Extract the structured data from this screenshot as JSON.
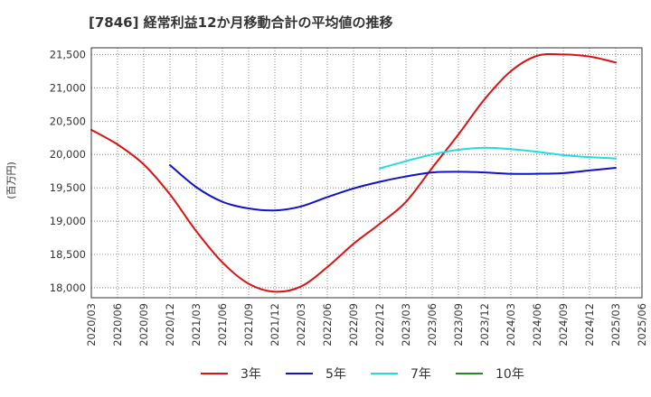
{
  "chart_data": {
    "type": "line",
    "title": "[7846]  経常利益12か月移動合計の平均値の推移",
    "ylabel": "(百万円)",
    "xlabel": "",
    "ylim": [
      17850,
      21600
    ],
    "x_ticks": [
      "2020/03",
      "2020/06",
      "2020/09",
      "2020/12",
      "2021/03",
      "2021/06",
      "2021/09",
      "2021/12",
      "2022/03",
      "2022/06",
      "2022/09",
      "2022/12",
      "2023/03",
      "2023/06",
      "2023/09",
      "2023/12",
      "2024/03",
      "2024/06",
      "2024/09",
      "2024/12",
      "2025/03",
      "2025/06"
    ],
    "y_ticks": [
      18000,
      18500,
      19000,
      19500,
      20000,
      20500,
      21000,
      21500
    ],
    "y_tick_labels": [
      "18,000",
      "18,500",
      "19,000",
      "19,500",
      "20,000",
      "20,500",
      "21,000",
      "21,500"
    ],
    "grid": true,
    "legend_position": "bottom",
    "series": [
      {
        "name": "3年",
        "color": "#dd1111",
        "x": [
          "2020/03",
          "2020/06",
          "2020/09",
          "2020/12",
          "2021/03",
          "2021/06",
          "2021/09",
          "2021/12",
          "2022/03",
          "2022/06",
          "2022/09",
          "2022/12",
          "2023/03",
          "2023/06",
          "2023/09",
          "2023/12",
          "2024/03",
          "2024/06",
          "2024/09",
          "2024/12",
          "2025/03"
        ],
        "values": [
          20370,
          20150,
          19850,
          19400,
          18850,
          18380,
          18060,
          17940,
          18020,
          18310,
          18660,
          18960,
          19290,
          19800,
          20300,
          20830,
          21250,
          21480,
          21500,
          21470,
          21380
        ]
      },
      {
        "name": "5年",
        "color": "#1111cc",
        "x": [
          "2020/12",
          "2021/03",
          "2021/06",
          "2021/09",
          "2021/12",
          "2022/03",
          "2022/06",
          "2022/09",
          "2022/12",
          "2023/03",
          "2023/06",
          "2023/09",
          "2023/12",
          "2024/03",
          "2024/06",
          "2024/09",
          "2024/12",
          "2025/03"
        ],
        "values": [
          19840,
          19510,
          19290,
          19190,
          19160,
          19220,
          19360,
          19490,
          19590,
          19670,
          19730,
          19740,
          19730,
          19710,
          19710,
          19720,
          19760,
          19800
        ]
      },
      {
        "name": "7年",
        "color": "#22dddd",
        "x": [
          "2022/12",
          "2023/03",
          "2023/06",
          "2023/09",
          "2023/12",
          "2024/03",
          "2024/06",
          "2024/09",
          "2024/12",
          "2025/03"
        ],
        "values": [
          19790,
          19900,
          20000,
          20070,
          20100,
          20080,
          20040,
          19990,
          19960,
          19940
        ]
      },
      {
        "name": "10年",
        "color": "#228822",
        "x": [],
        "values": []
      }
    ]
  }
}
